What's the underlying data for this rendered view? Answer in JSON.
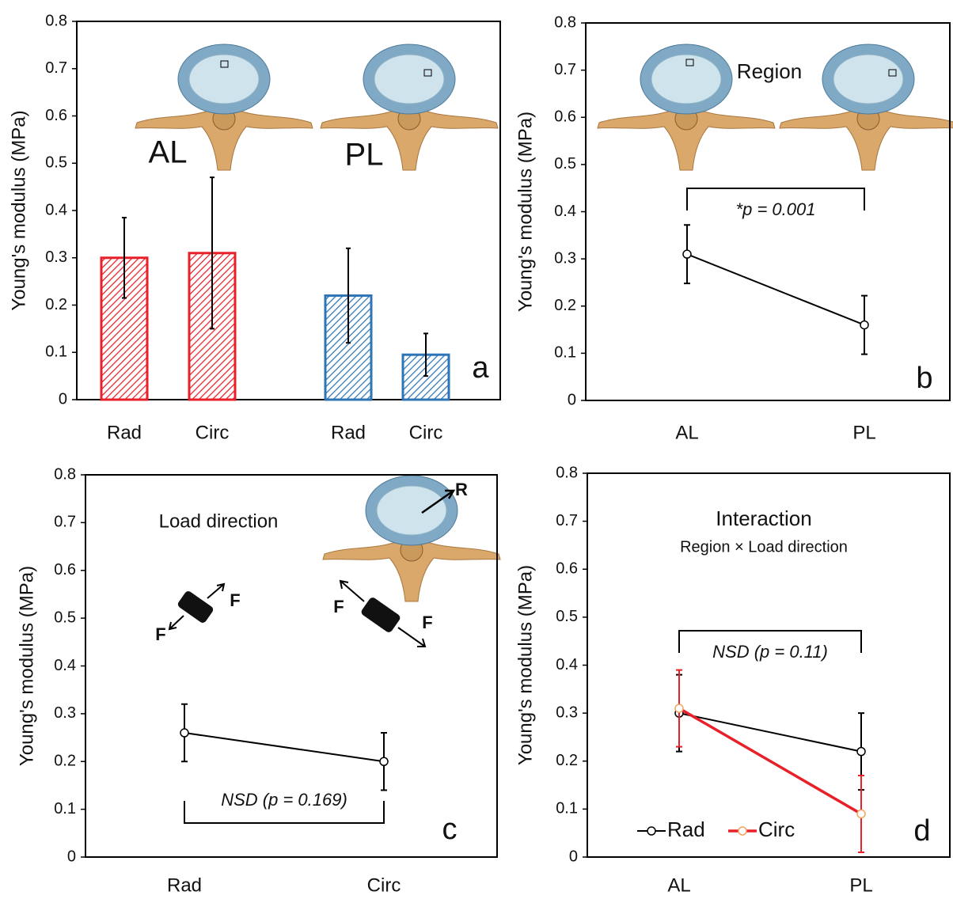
{
  "chart_data": [
    {
      "type": "bar",
      "y_label": "Young's modulus (MPa)",
      "ylim": [
        0,
        0.8
      ],
      "yticks": [
        0,
        0.1,
        0.2,
        0.3,
        0.4,
        0.5,
        0.6,
        0.7,
        0.8
      ],
      "categories": [
        "Rad",
        "Circ",
        "Rad",
        "Circ"
      ],
      "groups": [
        "AL",
        "PL"
      ],
      "values": [
        0.3,
        0.31,
        0.22,
        0.095
      ],
      "errors": [
        0.085,
        0.16,
        0.1,
        0.045
      ],
      "colors": [
        "#e8202a",
        "#e8202a",
        "#2e75b6",
        "#2e75b6"
      ],
      "panel_label": "a"
    },
    {
      "type": "line",
      "y_label": "Young's modulus (MPa)",
      "ylim": [
        0,
        0.8
      ],
      "yticks": [
        0,
        0.1,
        0.2,
        0.3,
        0.4,
        0.5,
        0.6,
        0.7,
        0.8
      ],
      "title": "Region",
      "categories": [
        "AL",
        "PL"
      ],
      "series": [
        {
          "color": "#000000",
          "values": [
            0.31,
            0.16
          ],
          "errors": [
            0.062,
            0.062
          ]
        }
      ],
      "annotation": "*p = 0.001",
      "panel_label": "b"
    },
    {
      "type": "line",
      "y_label": "Young's modulus (MPa)",
      "ylim": [
        0,
        0.8
      ],
      "yticks": [
        0,
        0.1,
        0.2,
        0.3,
        0.4,
        0.5,
        0.6,
        0.7,
        0.8
      ],
      "title": "Load direction",
      "categories": [
        "Rad",
        "Circ"
      ],
      "series": [
        {
          "color": "#000000",
          "values": [
            0.26,
            0.2
          ],
          "errors": [
            0.06,
            0.06
          ]
        }
      ],
      "annotation": "NSD (p = 0.169)",
      "force_labels": [
        "F",
        "F",
        "F",
        "F"
      ],
      "radial_label": "R",
      "panel_label": "c"
    },
    {
      "type": "line",
      "y_label": "Young's modulus (MPa)",
      "ylim": [
        0,
        0.8
      ],
      "yticks": [
        0,
        0.1,
        0.2,
        0.3,
        0.4,
        0.5,
        0.6,
        0.7,
        0.8
      ],
      "title": "Interaction",
      "subtitle": "Region × Load direction",
      "categories": [
        "AL",
        "PL"
      ],
      "series": [
        {
          "name": "Rad",
          "color": "#000000",
          "values": [
            0.3,
            0.22
          ],
          "errors": [
            0.08,
            0.08
          ]
        },
        {
          "name": "Circ",
          "color": "#e8202a",
          "values": [
            0.31,
            0.09
          ],
          "errors": [
            0.08,
            0.08
          ]
        }
      ],
      "legend": "lower left",
      "annotation": "NSD (p = 0.11)",
      "panel_label": "d"
    }
  ]
}
